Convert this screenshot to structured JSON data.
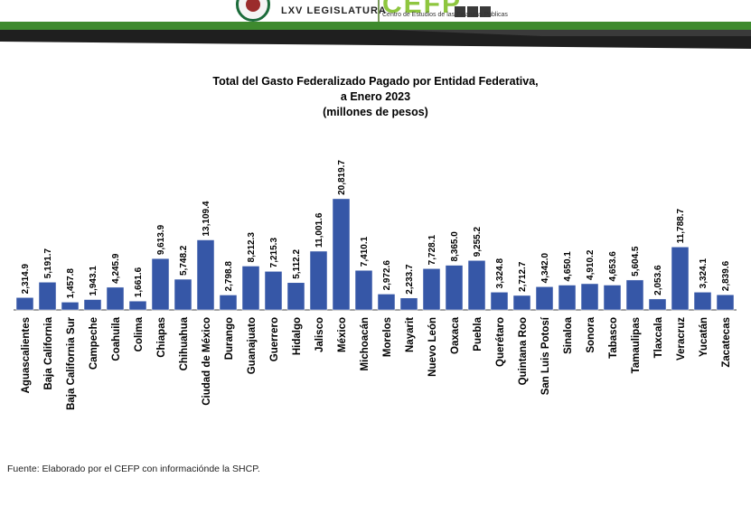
{
  "header": {
    "legislature_label": "LXV LEGISLATURA",
    "center_mark": "CEFP",
    "center_name": "Centro de Estudios de las Finanzas Públicas",
    "colors": {
      "band_green": "#3e8a2e",
      "band_dark": "#1f1f1f",
      "cefp_green": "#8ec63f"
    }
  },
  "chart_data": {
    "type": "bar",
    "title_lines": [
      "Total del Gasto Federalizado Pagado por Entidad Federativa,",
      "a Enero 2023",
      "(millones de pesos)"
    ],
    "xlabel": "",
    "ylabel": "",
    "ylim": [
      0,
      22500
    ],
    "grid": false,
    "legend": "none",
    "bar_color": "#3657a7",
    "categories": [
      "Aguascalientes",
      "Baja California",
      "Baja California Sur",
      "Campeche",
      "Coahuila",
      "Colima",
      "Chiapas",
      "Chihuahua",
      "Ciudad de México",
      "Durango",
      "Guanajuato",
      "Guerrero",
      "Hidalgo",
      "Jalisco",
      "México",
      "Michoacán",
      "Morelos",
      "Nayarit",
      "Nuevo León",
      "Oaxaca",
      "Puebla",
      "Querétaro",
      "Quintana Roo",
      "San Luis Potosí",
      "Sinaloa",
      "Sonora",
      "Tabasco",
      "Tamaulipas",
      "Tlaxcala",
      "Veracruz",
      "Yucatán",
      "Zacatecas"
    ],
    "values": [
      2314.9,
      5191.7,
      1457.8,
      1943.1,
      4245.9,
      1661.6,
      9613.9,
      5748.2,
      13109.4,
      2798.8,
      8212.3,
      7215.3,
      5112.2,
      11001.6,
      20819.7,
      7410.1,
      2972.6,
      2233.7,
      7728.1,
      8365.0,
      9255.2,
      3324.8,
      2712.7,
      4342.0,
      4650.1,
      4910.2,
      4653.6,
      5604.5,
      2053.6,
      11788.7,
      3324.1,
      2839.6
    ],
    "value_labels": [
      "2,314.9",
      "5,191.7",
      "1,457.8",
      "1,943.1",
      "4,245.9",
      "1,661.6",
      "9,613.9",
      "5,748.2",
      "13,109.4",
      "2,798.8",
      "8,212.3",
      "7,215.3",
      "5,112.2",
      "11,001.6",
      "20,819.7",
      "7,410.1",
      "2,972.6",
      "2,233.7",
      "7,728.1",
      "8,365.0",
      "9,255.2",
      "3,324.8",
      "2,712.7",
      "4,342.0",
      "4,650.1",
      "4,910.2",
      "4,653.6",
      "5,604.5",
      "2,053.6",
      "11,788.7",
      "3,324.1",
      "2,839.6"
    ]
  },
  "footer": {
    "source": "Fuente: Elaborado por el CEFP con informaciónde la SHCP."
  }
}
